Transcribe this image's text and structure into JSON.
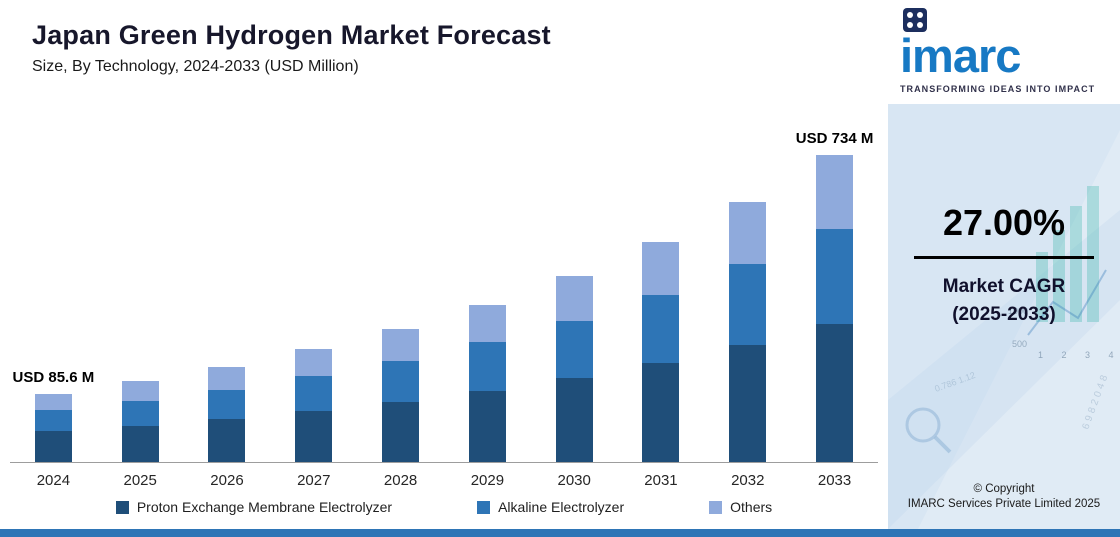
{
  "chart_data": {
    "type": "bar",
    "stacked": true,
    "title": "Japan Green Hydrogen Market Forecast",
    "subtitle": "Size, By Technology, 2024-2033 (USD Million)",
    "unit": "USD Million",
    "categories": [
      "2024",
      "2025",
      "2026",
      "2027",
      "2028",
      "2029",
      "2030",
      "2031",
      "2032",
      "2033"
    ],
    "series": [
      {
        "name": "Proton Exchange Membrane Electrolyzer",
        "color": "#1f4e79",
        "values": [
          38.5,
          48.9,
          62.1,
          78.9,
          100.2,
          127.3,
          161.6,
          205.3,
          260.7,
          330.3
        ]
      },
      {
        "name": "Alkaline Electrolyzer",
        "color": "#2e75b6",
        "values": [
          26.5,
          33.7,
          42.8,
          54.4,
          69.0,
          87.7,
          111.4,
          141.4,
          179.6,
          227.5
        ]
      },
      {
        "name": "Others",
        "color": "#8faadc",
        "values": [
          20.6,
          26.1,
          33.2,
          42.1,
          53.5,
          67.9,
          86.2,
          109.5,
          139.1,
          176.2
        ]
      }
    ],
    "totals": [
      85.6,
      108.7,
      138.1,
      175.4,
      222.7,
      282.9,
      359.2,
      456.2,
      579.4,
      734.0
    ],
    "annotations": [
      {
        "index": 0,
        "text": "USD 85.6 M"
      },
      {
        "index": 9,
        "text": "USD 734 M"
      }
    ],
    "ylim": [
      0,
      770
    ],
    "grid": false,
    "legend_position": "bottom"
  },
  "sidebar": {
    "logo_text": "imarc",
    "tagline": "TRANSFORMING IDEAS INTO IMPACT",
    "cagr_value": "27.00%",
    "cagr_label_line1": "Market CAGR",
    "cagr_label_line2": "(2025-2033)",
    "copyright_line1": "© Copyright",
    "copyright_line2": "IMARC Services Private Limited 2025"
  },
  "colors": {
    "accent_strip": "#2e75b6",
    "sidebar_bg": "#d8e6f3",
    "logo_blue": "#1779c4",
    "logo_square": "#1c2e5e",
    "title_text": "#17172b"
  }
}
